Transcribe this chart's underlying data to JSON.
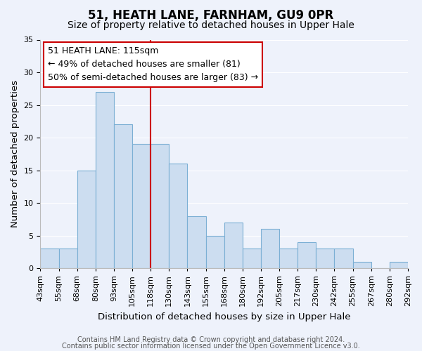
{
  "title": "51, HEATH LANE, FARNHAM, GU9 0PR",
  "subtitle": "Size of property relative to detached houses in Upper Hale",
  "xlabel": "Distribution of detached houses by size in Upper Hale",
  "ylabel": "Number of detached properties",
  "bin_labels": [
    "43sqm",
    "55sqm",
    "68sqm",
    "80sqm",
    "93sqm",
    "105sqm",
    "118sqm",
    "130sqm",
    "143sqm",
    "155sqm",
    "168sqm",
    "180sqm",
    "192sqm",
    "205sqm",
    "217sqm",
    "230sqm",
    "242sqm",
    "255sqm",
    "267sqm",
    "280sqm",
    "292sqm"
  ],
  "bar_values": [
    3,
    3,
    15,
    27,
    22,
    19,
    19,
    16,
    8,
    5,
    7,
    3,
    6,
    3,
    4,
    3,
    3,
    1,
    0,
    1
  ],
  "bar_color": "#ccddf0",
  "bar_edge_color": "#7bafd4",
  "vline_label_index": 6,
  "vline_color": "#cc0000",
  "annotation_text": "51 HEATH LANE: 115sqm\n← 49% of detached houses are smaller (81)\n50% of semi-detached houses are larger (83) →",
  "annotation_box_color": "#ffffff",
  "annotation_box_edge": "#cc0000",
  "ylim": [
    0,
    35
  ],
  "yticks": [
    0,
    5,
    10,
    15,
    20,
    25,
    30,
    35
  ],
  "background_color": "#eef2fb",
  "grid_color": "#ffffff",
  "footer_line1": "Contains HM Land Registry data © Crown copyright and database right 2024.",
  "footer_line2": "Contains public sector information licensed under the Open Government Licence v3.0.",
  "title_fontsize": 12,
  "subtitle_fontsize": 10,
  "axis_label_fontsize": 9.5,
  "tick_fontsize": 8,
  "footer_fontsize": 7,
  "annotation_fontsize": 9
}
